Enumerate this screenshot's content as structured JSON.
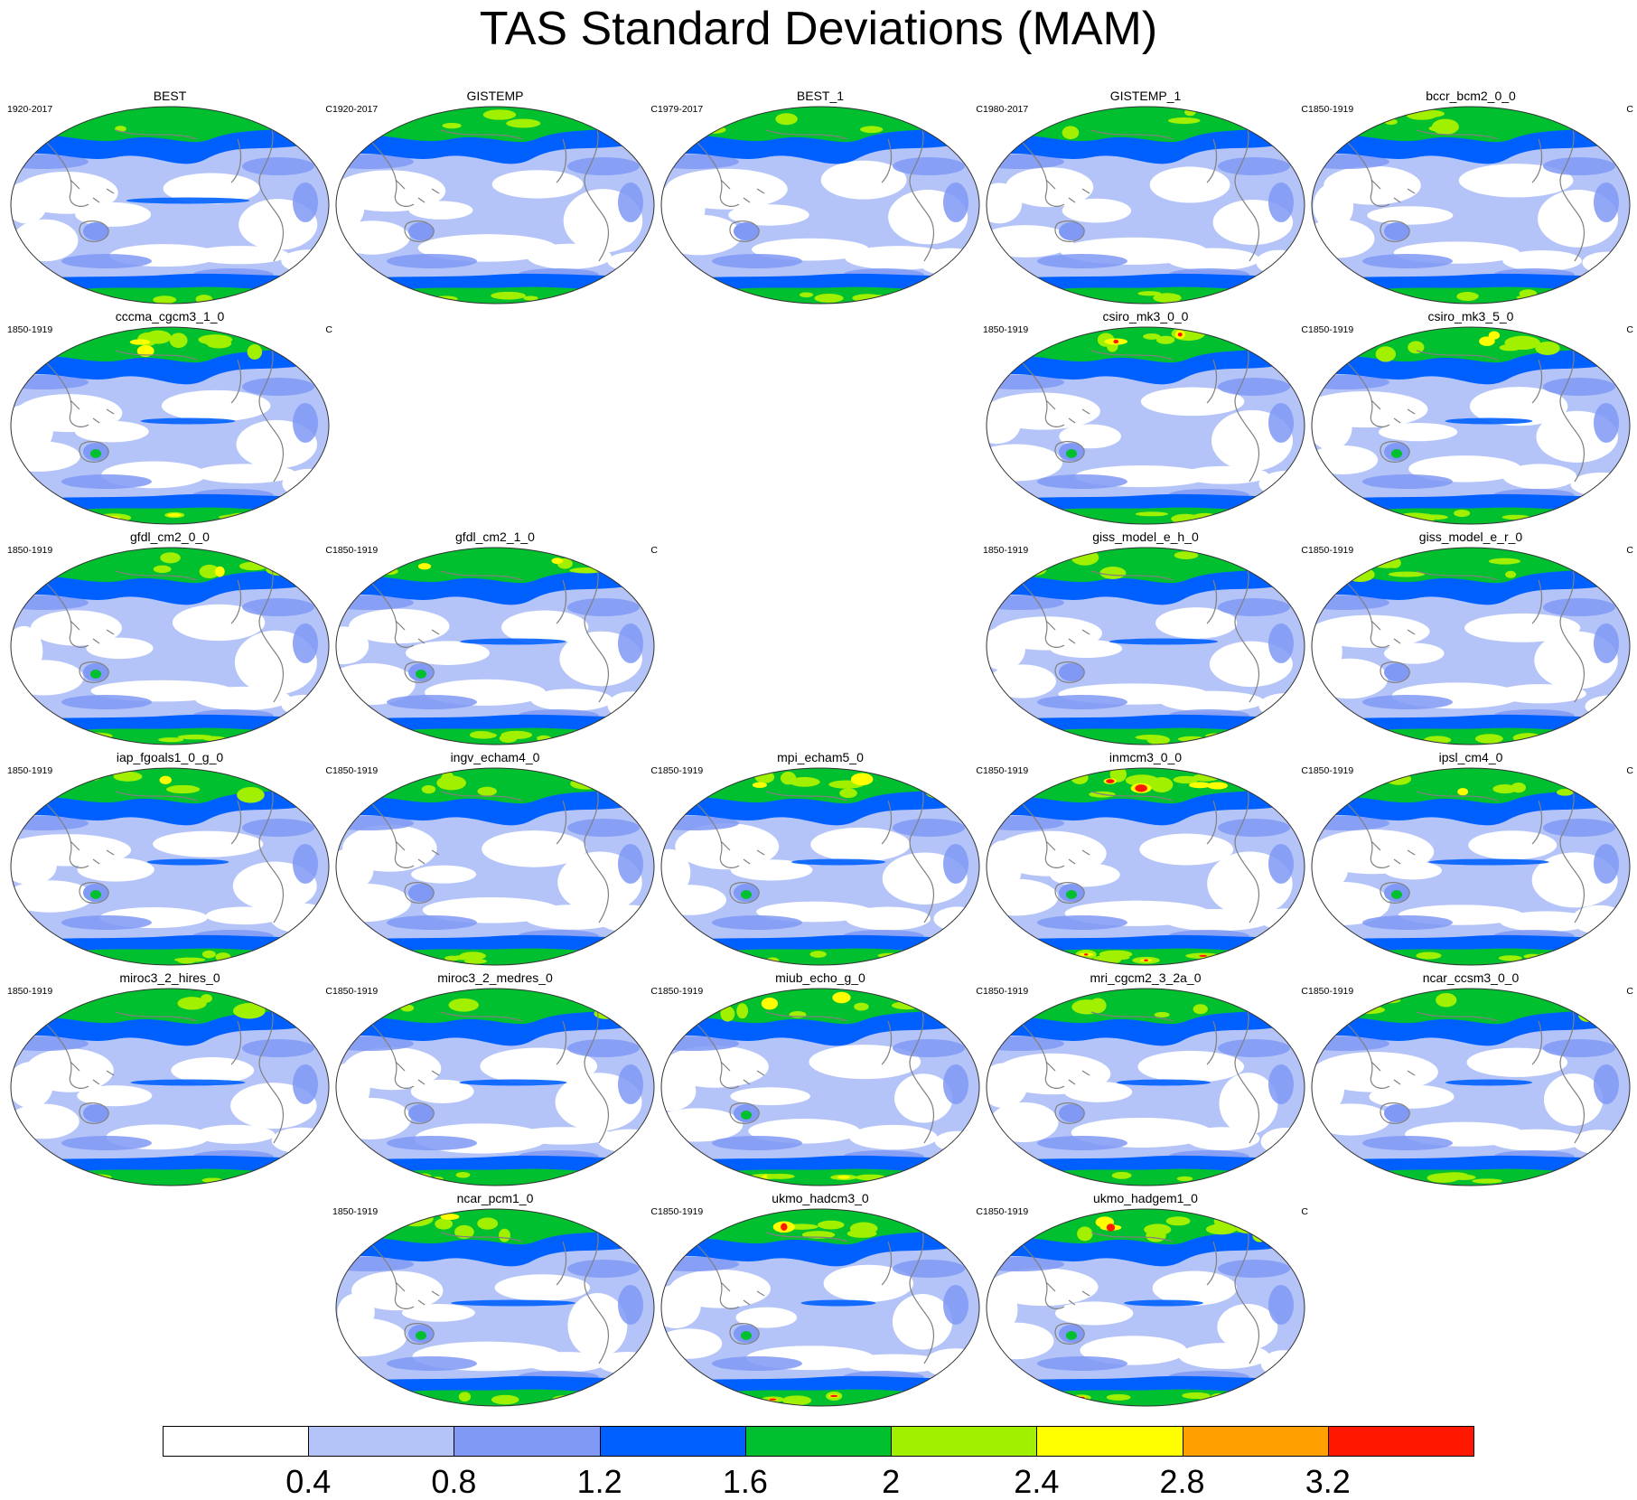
{
  "title": "TAS Standard Deviations (MAM)",
  "panels": [
    {
      "title": "BEST",
      "period": "1920-2017",
      "unit": "C",
      "row": 0,
      "col": 0,
      "intensity": 0.45
    },
    {
      "title": "GISTEMP",
      "period": "1920-2017",
      "unit": "C",
      "row": 0,
      "col": 1,
      "intensity": 0.35
    },
    {
      "title": "BEST_1",
      "period": "1979-2017",
      "unit": "C",
      "row": 0,
      "col": 2,
      "intensity": 0.45
    },
    {
      "title": "GISTEMP_1",
      "period": "1980-2017",
      "unit": "C",
      "row": 0,
      "col": 3,
      "intensity": 0.35
    },
    {
      "title": "bccr_bcm2_0_0",
      "period": "1850-1919",
      "unit": "C",
      "row": 0,
      "col": 4,
      "intensity": 0.5
    },
    {
      "title": "cccma_cgcm3_1_0",
      "period": "1850-1919",
      "unit": "C",
      "row": 1,
      "col": 0,
      "intensity": 0.6
    },
    {
      "title": "csiro_mk3_0_0",
      "period": "1850-1919",
      "unit": "C",
      "row": 1,
      "col": 3,
      "intensity": 0.7
    },
    {
      "title": "csiro_mk3_5_0",
      "period": "1850-1919",
      "unit": "C",
      "row": 1,
      "col": 4,
      "intensity": 0.55
    },
    {
      "title": "gfdl_cm2_0_0",
      "period": "1850-1919",
      "unit": "C",
      "row": 2,
      "col": 0,
      "intensity": 0.55
    },
    {
      "title": "gfdl_cm2_1_0",
      "period": "1850-1919",
      "unit": "C",
      "row": 2,
      "col": 1,
      "intensity": 0.6
    },
    {
      "title": "giss_model_e_h_0",
      "period": "1850-1919",
      "unit": "C",
      "row": 2,
      "col": 3,
      "intensity": 0.45
    },
    {
      "title": "giss_model_e_r_0",
      "period": "1850-1919",
      "unit": "C",
      "row": 2,
      "col": 4,
      "intensity": 0.45
    },
    {
      "title": "iap_fgoals1_0_g_0",
      "period": "1850-1919",
      "unit": "C",
      "row": 3,
      "col": 0,
      "intensity": 0.55
    },
    {
      "title": "ingv_echam4_0",
      "period": "1850-1919",
      "unit": "C",
      "row": 3,
      "col": 1,
      "intensity": 0.5
    },
    {
      "title": "mpi_echam5_0",
      "period": "1850-1919",
      "unit": "C",
      "row": 3,
      "col": 2,
      "intensity": 0.6
    },
    {
      "title": "inmcm3_0_0",
      "period": "1850-1919",
      "unit": "C",
      "row": 3,
      "col": 3,
      "intensity": 0.8
    },
    {
      "title": "ipsl_cm4_0",
      "period": "1850-1919",
      "unit": "C",
      "row": 3,
      "col": 4,
      "intensity": 0.55
    },
    {
      "title": "miroc3_2_hires_0",
      "period": "1850-1919",
      "unit": "C",
      "row": 4,
      "col": 0,
      "intensity": 0.45
    },
    {
      "title": "miroc3_2_medres_0",
      "period": "1850-1919",
      "unit": "C",
      "row": 4,
      "col": 1,
      "intensity": 0.45
    },
    {
      "title": "miub_echo_g_0",
      "period": "1850-1919",
      "unit": "C",
      "row": 4,
      "col": 2,
      "intensity": 0.6
    },
    {
      "title": "mri_cgcm2_3_2a_0",
      "period": "1850-1919",
      "unit": "C",
      "row": 4,
      "col": 3,
      "intensity": 0.45
    },
    {
      "title": "ncar_ccsm3_0_0",
      "period": "1850-1919",
      "unit": "C",
      "row": 4,
      "col": 4,
      "intensity": 0.5
    },
    {
      "title": "ncar_pcm1_0",
      "period": "1850-1919",
      "unit": "C",
      "row": 5,
      "col": 1,
      "intensity": 0.55
    },
    {
      "title": "ukmo_hadcm3_0",
      "period": "1850-1919",
      "unit": "C",
      "row": 5,
      "col": 2,
      "intensity": 0.75
    },
    {
      "title": "ukmo_hadgem1_0",
      "period": "1850-1919",
      "unit": "C",
      "row": 5,
      "col": 3,
      "intensity": 0.75
    }
  ],
  "colorbar": {
    "colors": [
      "#ffffff",
      "#b4c4f8",
      "#7f99f5",
      "#0060ff",
      "#00c030",
      "#a0f000",
      "#ffff00",
      "#ffa000",
      "#ff1800"
    ],
    "labels": [
      "0.4",
      "0.8",
      "1.2",
      "1.6",
      "2",
      "2.4",
      "2.8",
      "3.2"
    ]
  }
}
